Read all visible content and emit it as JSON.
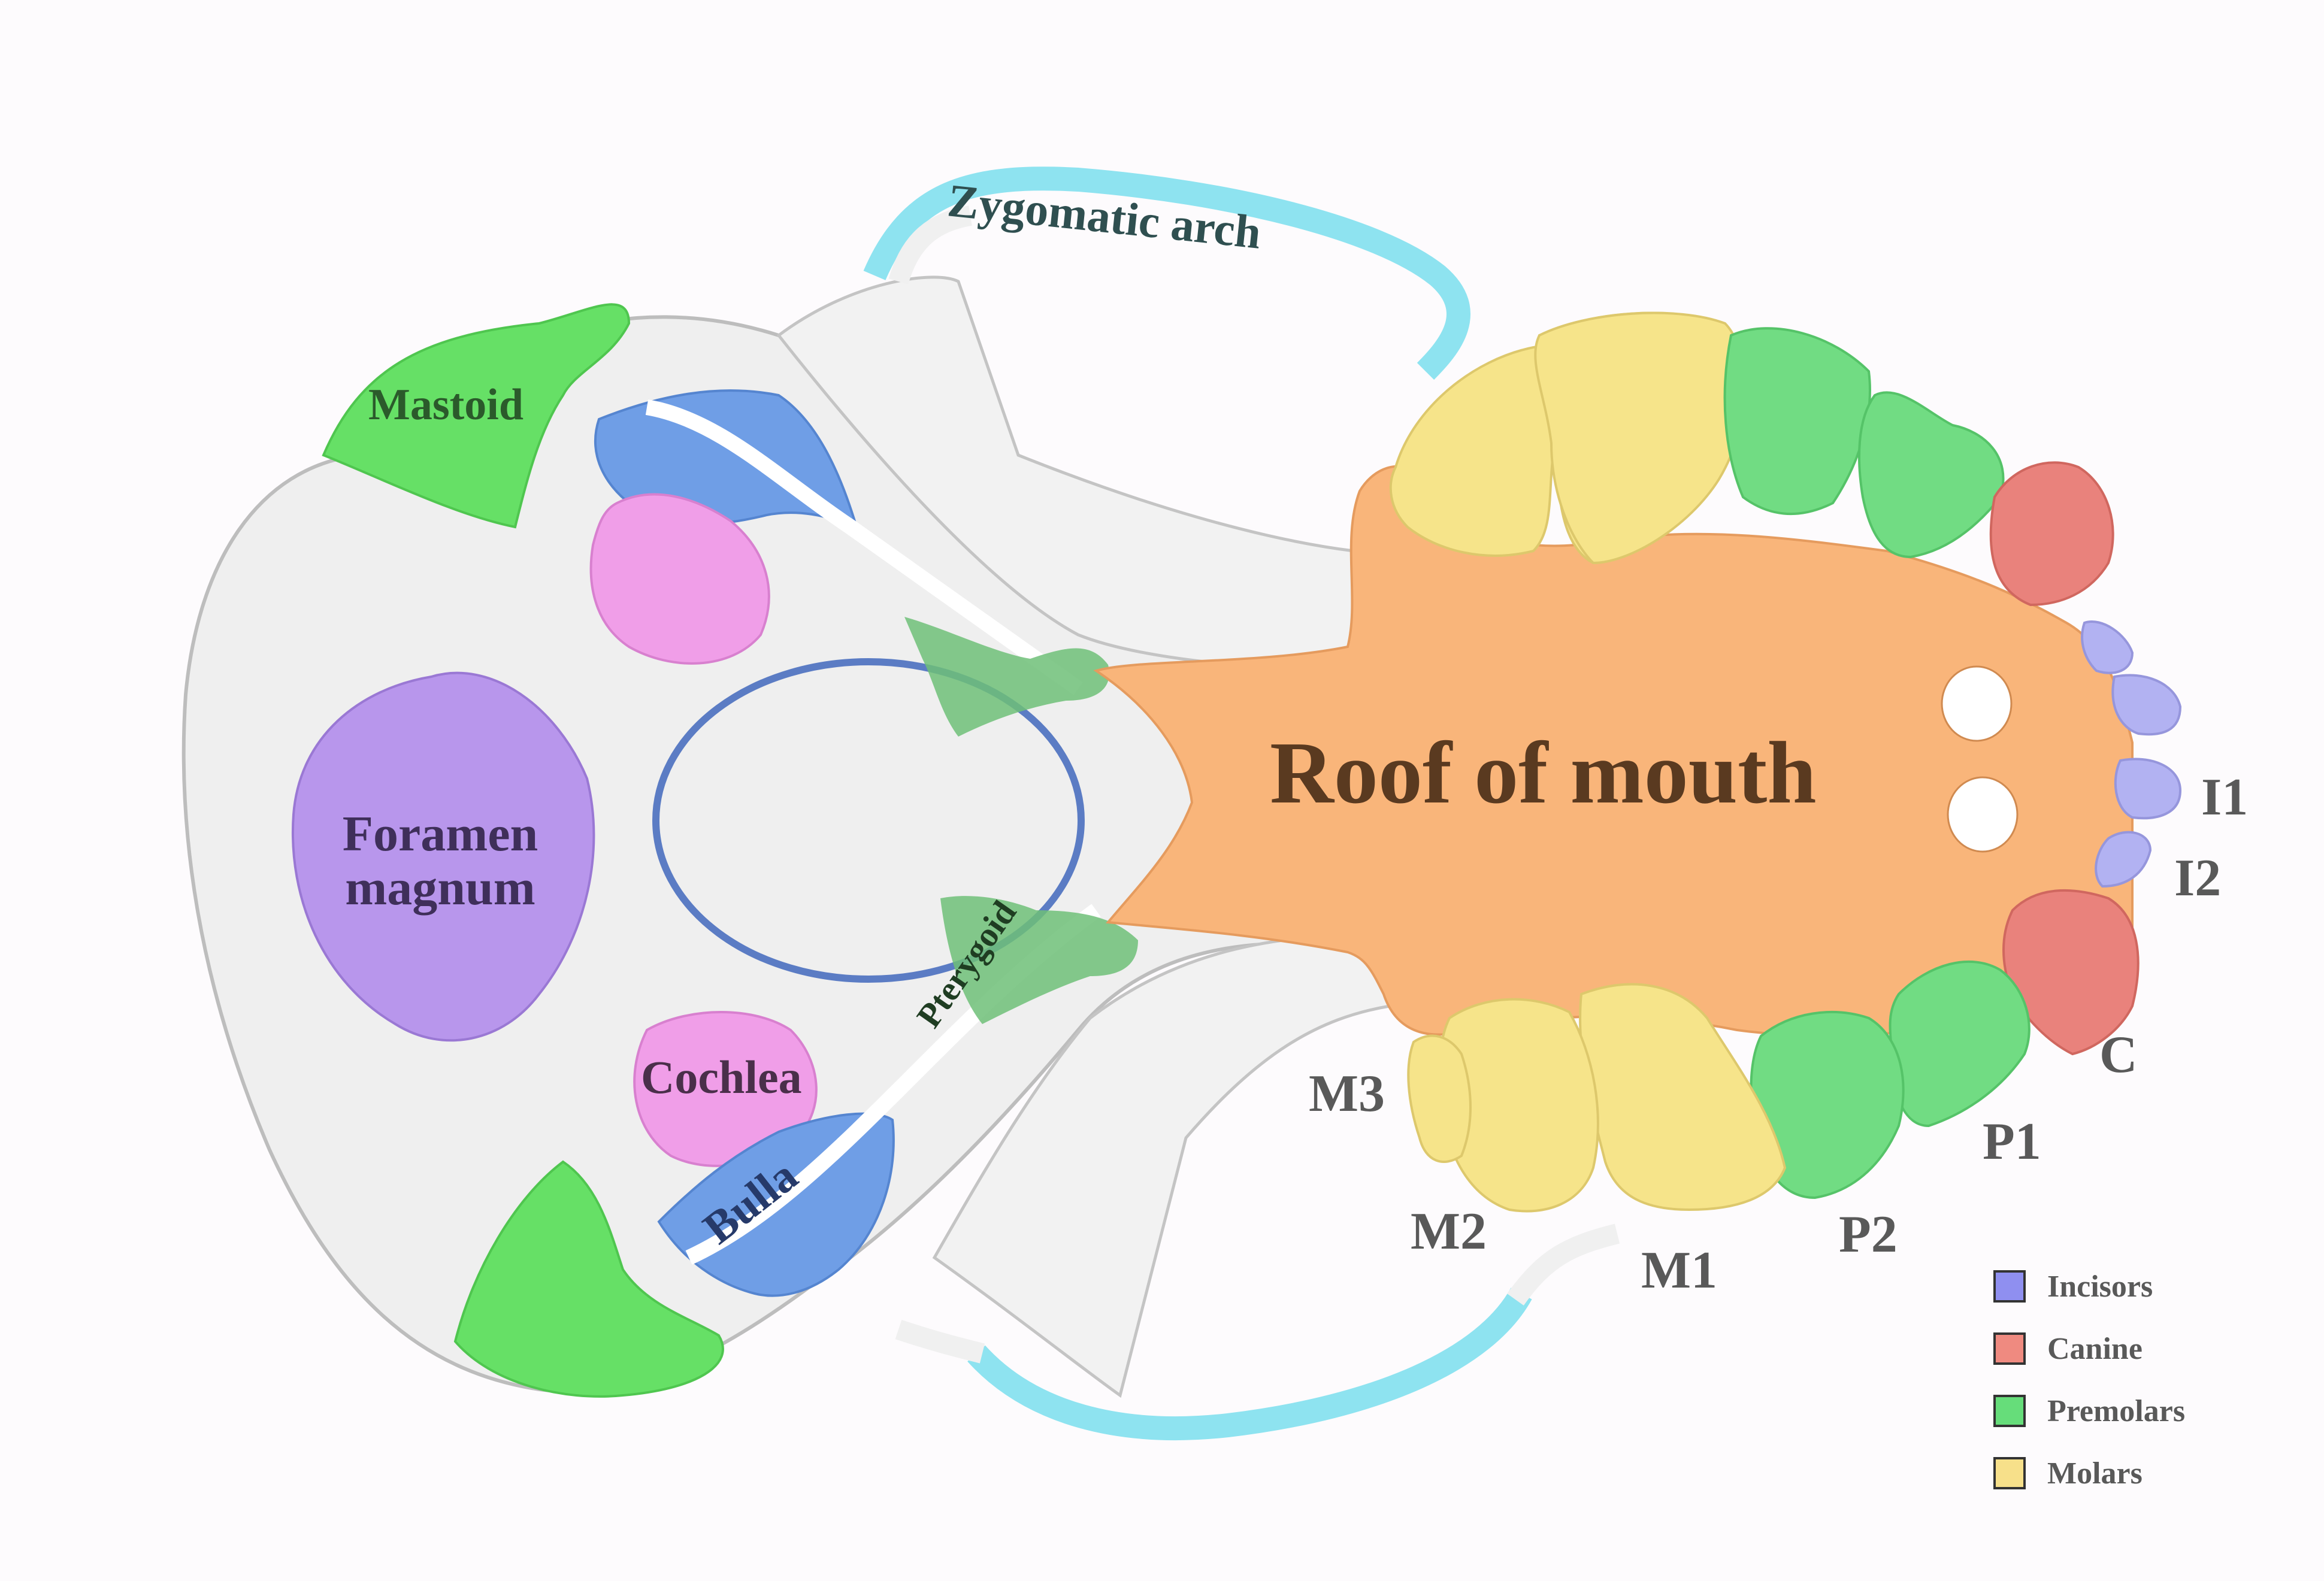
{
  "labels": {
    "zygomatic_arch": "Zygomatic arch",
    "mastoid": "Mastoid",
    "foramen_magnum_line1": "Foramen",
    "foramen_magnum_line2": "magnum",
    "cochlea": "Cochlea",
    "bulla": "Bulla",
    "pterygoid": "Pterygoid",
    "roof_of_mouth": "Roof of mouth",
    "I1": "I1",
    "I2": "I2",
    "C": "C",
    "P1": "P1",
    "P2": "P2",
    "M1": "M1",
    "M2": "M2",
    "M3": "M3"
  },
  "legend": [
    {
      "label": "Incisors",
      "color": "#8f8ff0"
    },
    {
      "label": "Canine",
      "color": "#ef8a80"
    },
    {
      "label": "Premolars",
      "color": "#66dd7a"
    },
    {
      "label": "Molars",
      "color": "#f7e08a"
    }
  ],
  "colors": {
    "bone": "#f0f0f0",
    "zygomatic": "#8ee3f0",
    "mastoid": "#66e066",
    "cochlea": "#f09ee8",
    "bulla": "#6f9ee6",
    "foramen": "#b896ec",
    "pterygoid": "#6fc078",
    "roof": "#f9b57a",
    "incisor": "#b2b2f2",
    "canine": "#e9827c",
    "premolar": "#71dc83",
    "molar": "#f6e48a",
    "highlight_ring": "#5b7cc4"
  }
}
